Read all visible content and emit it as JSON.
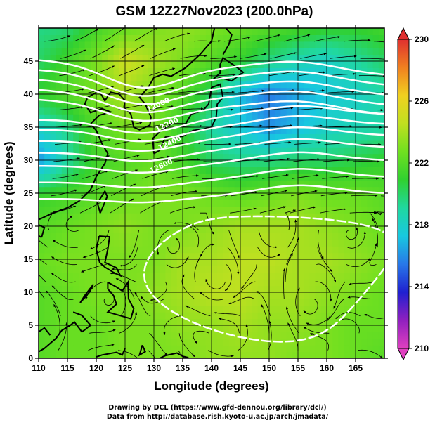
{
  "chart_data": {
    "type": "heatmap",
    "title": "GSM 12Z27Nov2023 (200.0hPa)",
    "xlabel": "Longitude (degrees)",
    "ylabel": "Latitude  (degrees)",
    "xlim": [
      110,
      170
    ],
    "ylim": [
      0,
      50
    ],
    "xticks": [
      "110",
      "115",
      "120",
      "125",
      "130",
      "135",
      "140",
      "145",
      "150",
      "155",
      "160",
      "165"
    ],
    "yticks": [
      "0",
      "5",
      "10",
      "15",
      "20",
      "25",
      "30",
      "35",
      "40",
      "45"
    ],
    "colorbar": {
      "ticks": [
        "210",
        "214",
        "218",
        "222",
        "226",
        "230"
      ],
      "range": [
        210,
        230
      ],
      "colors": [
        "#e040c0",
        "#9020c0",
        "#2020d0",
        "#2878e8",
        "#18c8e0",
        "#20d8a0",
        "#30d030",
        "#70e020",
        "#c0e020",
        "#f0d020",
        "#f08020",
        "#e03030"
      ]
    },
    "temperature_field": [
      [
        219.5,
        219.8,
        221.5,
        222.5,
        223.0,
        223.5,
        223.0,
        222.5,
        222.0,
        221.5,
        221.0,
        221.0,
        221.5
      ],
      [
        220.0,
        221.5,
        223.0,
        225.0,
        224.0,
        223.0,
        222.0,
        221.0,
        219.5,
        218.5,
        218.0,
        219.0,
        220.0
      ],
      [
        221.0,
        222.0,
        223.0,
        224.0,
        223.0,
        222.0,
        220.0,
        217.0,
        215.5,
        216.5,
        217.5,
        218.0,
        219.0
      ],
      [
        218.0,
        219.5,
        222.0,
        223.0,
        223.0,
        221.0,
        219.0,
        217.5,
        216.0,
        217.0,
        218.0,
        218.5,
        219.0
      ],
      [
        216.0,
        219.0,
        221.5,
        222.0,
        222.5,
        221.5,
        220.0,
        219.5,
        219.5,
        220.0,
        220.0,
        220.5,
        221.0
      ],
      [
        221.0,
        221.5,
        222.0,
        222.5,
        223.0,
        223.0,
        222.5,
        222.0,
        222.5,
        223.0,
        222.5,
        222.5,
        222.0
      ],
      [
        222.0,
        222.5,
        223.0,
        223.5,
        223.0,
        223.0,
        223.5,
        224.0,
        224.0,
        224.0,
        223.5,
        223.0,
        222.5
      ],
      [
        222.5,
        223.0,
        223.0,
        223.0,
        223.0,
        224.0,
        224.0,
        224.5,
        224.5,
        224.0,
        224.0,
        223.5,
        223.0
      ],
      [
        222.0,
        222.5,
        223.0,
        223.0,
        223.5,
        224.0,
        224.5,
        224.5,
        224.0,
        224.0,
        223.5,
        223.0,
        222.5
      ],
      [
        222.0,
        222.5,
        222.5,
        223.0,
        223.0,
        223.5,
        223.5,
        224.0,
        223.5,
        223.5,
        223.0,
        222.5,
        222.5
      ],
      [
        222.0,
        222.5,
        222.5,
        223.0,
        223.0,
        223.0,
        223.5,
        223.5,
        223.5,
        223.0,
        223.0,
        222.5,
        222.0
      ]
    ],
    "contours": {
      "color": "#ffffff",
      "labels": [
        "12000",
        "12200",
        "12400",
        "12600"
      ]
    },
    "credits": [
      "Drawing by DCL (https://www.gfd-dennou.org/library/dcl/)",
      "Data from http://database.rish.kyoto-u.ac.jp/arch/jmadata/"
    ]
  }
}
